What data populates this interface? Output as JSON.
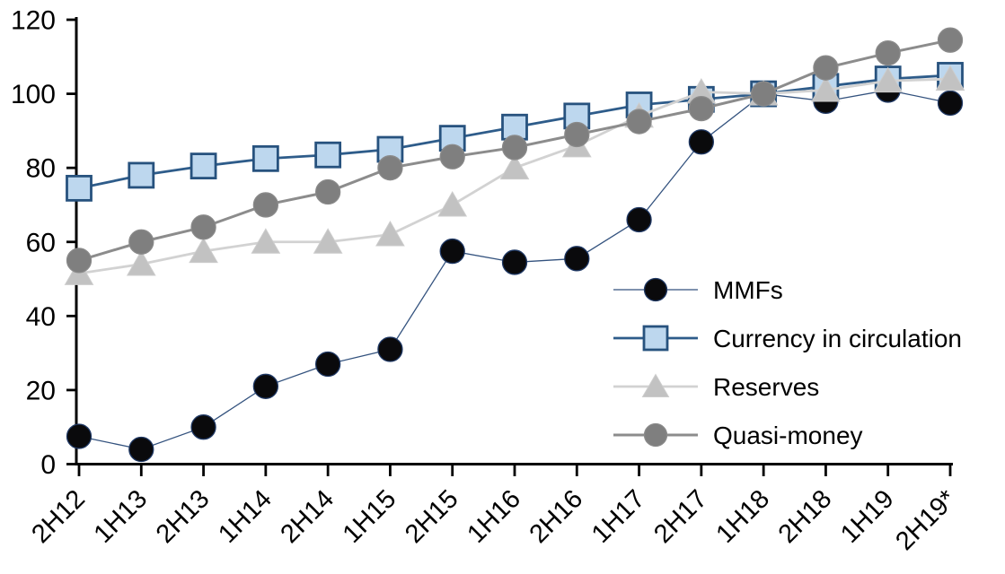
{
  "chart_data": {
    "type": "line",
    "title": "",
    "xlabel": "",
    "ylabel": "",
    "categories": [
      "2H12",
      "1H13",
      "2H13",
      "1H14",
      "2H14",
      "1H15",
      "2H15",
      "1H16",
      "2H16",
      "1H17",
      "2H17",
      "1H18",
      "2H18",
      "1H19",
      "2H19*"
    ],
    "series": [
      {
        "name": "MMFs",
        "marker": "circle",
        "marker_fill": "#0a0a0c",
        "marker_stroke": "#1f3864",
        "line_color": "#33527e",
        "line_width": 1.3,
        "values": [
          7.5,
          4,
          10,
          21,
          27,
          31,
          57.5,
          54.5,
          55.5,
          66,
          87,
          100,
          98,
          101,
          97.5
        ]
      },
      {
        "name": "Currency in circulation",
        "marker": "square",
        "marker_fill": "#bdd7ee",
        "marker_stroke": "#27527e",
        "line_color": "#2e5c8a",
        "line_width": 2.8,
        "values": [
          74.5,
          78,
          80.5,
          82.5,
          83.5,
          85,
          88,
          91,
          94,
          97,
          98.5,
          100,
          102,
          104,
          105
        ]
      },
      {
        "name": "Reserves",
        "marker": "triangle",
        "marker_fill": "#c2c2c2",
        "marker_stroke": "#cccccc",
        "line_color": "#d2d2d2",
        "line_width": 2.8,
        "values": [
          51.5,
          54,
          57.5,
          60,
          60,
          62,
          70,
          80,
          86,
          94,
          100.5,
          100,
          101,
          103.5,
          104
        ]
      },
      {
        "name": "Quasi-money",
        "marker": "circle",
        "marker_fill": "#7f7f7f",
        "marker_stroke": "#8a8a8a",
        "line_color": "#8c8c8c",
        "line_width": 3,
        "values": [
          55,
          60,
          64,
          70,
          73.5,
          80,
          83,
          85.5,
          89,
          92.5,
          96,
          100,
          107,
          111,
          114.5
        ]
      }
    ],
    "ylim": [
      0,
      120
    ],
    "yticks": [
      0,
      20,
      40,
      60,
      80,
      100,
      120
    ],
    "grid": false,
    "legend_position": "inside-right",
    "background": "#ffffff",
    "axis_color": "#000000"
  }
}
